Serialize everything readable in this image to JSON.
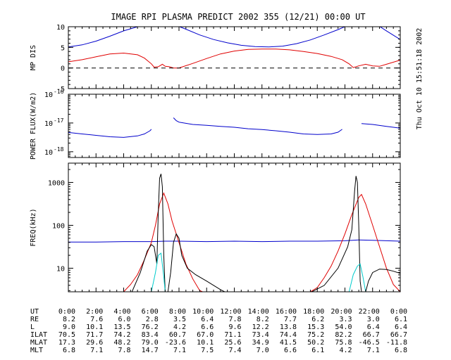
{
  "header": {
    "title": "IMAGE  RPI PLASMA PREDICT 2002 355 (12/21) 00:00 UT",
    "timestamp": "Thu Oct 10 15:51:18 2002"
  },
  "colors": {
    "blue": "#0000cc",
    "red": "#e00000",
    "black": "#000000",
    "cyan": "#00cccc"
  },
  "chart_data": [
    {
      "type": "line",
      "ylabel": "MP DIS",
      "xlim": [
        0,
        24
      ],
      "ylim": [
        -5,
        10
      ],
      "yticks": [
        -5,
        0,
        5,
        10
      ],
      "series": [
        {
          "color": "blue",
          "points": [
            [
              0,
              5.1
            ],
            [
              1,
              5.6
            ],
            [
              2,
              6.5
            ],
            [
              3,
              7.7
            ],
            [
              4,
              9.0
            ],
            [
              5,
              10.0
            ],
            [
              5.2,
              10.3
            ]
          ]
        },
        {
          "color": "blue",
          "points": [
            [
              7.8,
              10.3
            ],
            [
              8.5,
              9.4
            ],
            [
              9.5,
              8.0
            ],
            [
              10.5,
              6.9
            ],
            [
              11.5,
              6.1
            ],
            [
              12.5,
              5.5
            ],
            [
              13.5,
              5.2
            ],
            [
              14.5,
              5.1
            ],
            [
              15.5,
              5.3
            ],
            [
              16.5,
              5.9
            ],
            [
              17.5,
              6.8
            ],
            [
              18.5,
              8.0
            ],
            [
              19.5,
              9.3
            ],
            [
              20.2,
              10.3
            ]
          ]
        },
        {
          "color": "blue",
          "points": [
            [
              22.4,
              10.3
            ],
            [
              23,
              9.0
            ],
            [
              24,
              6.9
            ]
          ]
        },
        {
          "color": "red",
          "points": [
            [
              0,
              1.5
            ],
            [
              1,
              2.0
            ],
            [
              2,
              2.7
            ],
            [
              3,
              3.4
            ],
            [
              4,
              3.6
            ],
            [
              5,
              3.2
            ],
            [
              5.5,
              2.4
            ],
            [
              6,
              1.0
            ],
            [
              6.2,
              0.2
            ],
            [
              6.5,
              0.3
            ],
            [
              6.8,
              0.9
            ],
            [
              7,
              0.4
            ],
            [
              7.3,
              0.3
            ],
            [
              7.6,
              0.0
            ],
            [
              8,
              0.0
            ],
            [
              9,
              1.1
            ],
            [
              10,
              2.3
            ],
            [
              11,
              3.4
            ],
            [
              12,
              4.1
            ],
            [
              13,
              4.5
            ],
            [
              14,
              4.6
            ],
            [
              15,
              4.6
            ],
            [
              16,
              4.4
            ],
            [
              17,
              4.0
            ],
            [
              18,
              3.5
            ],
            [
              19,
              2.8
            ],
            [
              19.8,
              2.0
            ],
            [
              20.3,
              1.0
            ],
            [
              20.6,
              0.1
            ],
            [
              21,
              0.5
            ],
            [
              21.5,
              0.9
            ],
            [
              22,
              0.5
            ],
            [
              22.5,
              0.4
            ],
            [
              23,
              0.9
            ],
            [
              24,
              1.9
            ]
          ]
        },
        {
          "color": "black",
          "dashed": true,
          "points": [
            [
              0,
              0
            ],
            [
              24,
              0
            ]
          ]
        }
      ]
    },
    {
      "type": "line",
      "ylabel": "POWER FLUX(W/m2)",
      "xlim": [
        0,
        24
      ],
      "ylim": [
        -18.2,
        -16
      ],
      "log": true,
      "yticks": [
        -18,
        -17,
        -16
      ],
      "ytick_labels": [
        "10",
        "10",
        "10"
      ],
      "ytick_exponents": [
        "-18",
        "-17",
        "-16"
      ],
      "series": [
        {
          "color": "blue",
          "points": [
            [
              0,
              -17.33
            ],
            [
              1,
              -17.38
            ],
            [
              2,
              -17.43
            ],
            [
              3,
              -17.48
            ],
            [
              4,
              -17.5
            ],
            [
              5,
              -17.45
            ],
            [
              5.5,
              -17.38
            ],
            [
              5.9,
              -17.27
            ],
            [
              6.0,
              -17.22
            ]
          ]
        },
        {
          "color": "blue",
          "points": [
            [
              7.6,
              -16.82
            ],
            [
              7.8,
              -16.92
            ],
            [
              8,
              -16.97
            ],
            [
              9,
              -17.05
            ],
            [
              10,
              -17.08
            ],
            [
              11,
              -17.12
            ],
            [
              12,
              -17.15
            ],
            [
              13,
              -17.2
            ],
            [
              14,
              -17.23
            ],
            [
              15,
              -17.27
            ],
            [
              16,
              -17.32
            ],
            [
              17,
              -17.38
            ],
            [
              18,
              -17.4
            ],
            [
              19,
              -17.38
            ],
            [
              19.5,
              -17.32
            ],
            [
              19.8,
              -17.22
            ]
          ]
        },
        {
          "color": "blue",
          "points": [
            [
              21.2,
              -17.02
            ],
            [
              22,
              -17.05
            ],
            [
              23,
              -17.12
            ],
            [
              24,
              -17.18
            ]
          ]
        }
      ]
    },
    {
      "type": "line",
      "ylabel": "FREQ(kHz)",
      "xlim": [
        0,
        24
      ],
      "ylim": [
        0.45,
        3.45
      ],
      "log": true,
      "yticks": [
        1,
        2,
        3
      ],
      "ytick_labels": [
        "10",
        "100",
        "1000"
      ],
      "series": [
        {
          "color": "blue",
          "points": [
            [
              0,
              1.61
            ],
            [
              2,
              1.61
            ],
            [
              4,
              1.62
            ],
            [
              6,
              1.62
            ],
            [
              7,
              1.63
            ],
            [
              8,
              1.63
            ],
            [
              10,
              1.62
            ],
            [
              12,
              1.63
            ],
            [
              14,
              1.62
            ],
            [
              16,
              1.63
            ],
            [
              18,
              1.63
            ],
            [
              20,
              1.64
            ],
            [
              21,
              1.66
            ],
            [
              22,
              1.65
            ],
            [
              23,
              1.64
            ],
            [
              24,
              1.63
            ]
          ]
        },
        {
          "color": "red",
          "points": [
            [
              4,
              0.45
            ],
            [
              4.5,
              0.62
            ],
            [
              5,
              0.85
            ],
            [
              5.5,
              1.2
            ],
            [
              6,
              1.6
            ],
            [
              6.3,
              2.0
            ],
            [
              6.6,
              2.5
            ],
            [
              6.9,
              2.75
            ],
            [
              7.2,
              2.5
            ],
            [
              7.5,
              2.1
            ],
            [
              8,
              1.6
            ],
            [
              8.5,
              1.1
            ],
            [
              9,
              0.75
            ],
            [
              9.5,
              0.48
            ],
            [
              9.7,
              0.45
            ]
          ]
        },
        {
          "color": "red",
          "points": [
            [
              17.5,
              0.45
            ],
            [
              18,
              0.55
            ],
            [
              18.5,
              0.78
            ],
            [
              19,
              1.05
            ],
            [
              19.5,
              1.4
            ],
            [
              20,
              1.8
            ],
            [
              20.5,
              2.25
            ],
            [
              21,
              2.65
            ],
            [
              21.2,
              2.72
            ],
            [
              21.5,
              2.5
            ],
            [
              22,
              2.0
            ],
            [
              22.5,
              1.5
            ],
            [
              23,
              1.0
            ],
            [
              23.5,
              0.62
            ],
            [
              24,
              0.45
            ]
          ]
        },
        {
          "color": "black",
          "points": [
            [
              4.6,
              0.45
            ],
            [
              5.2,
              0.9
            ],
            [
              5.7,
              1.4
            ],
            [
              6.0,
              1.55
            ],
            [
              6.2,
              1.5
            ],
            [
              6.4,
              1.1
            ],
            [
              6.5,
              2.3
            ],
            [
              6.6,
              3.1
            ],
            [
              6.7,
              3.2
            ],
            [
              6.8,
              2.9
            ],
            [
              6.9,
              1.3
            ],
            [
              7.0,
              0.45
            ]
          ]
        },
        {
          "color": "black",
          "points": [
            [
              7.2,
              0.45
            ],
            [
              7.4,
              0.9
            ],
            [
              7.6,
              1.6
            ],
            [
              7.8,
              1.8
            ],
            [
              8.0,
              1.7
            ],
            [
              8.2,
              1.3
            ],
            [
              8.6,
              1.0
            ],
            [
              9.2,
              0.85
            ],
            [
              10,
              0.7
            ],
            [
              11,
              0.5
            ],
            [
              11.3,
              0.45
            ]
          ]
        },
        {
          "color": "black",
          "points": [
            [
              17.6,
              0.45
            ],
            [
              18.5,
              0.6
            ],
            [
              19.5,
              1.0
            ],
            [
              20.2,
              1.5
            ],
            [
              20.5,
              1.9
            ],
            [
              20.7,
              2.8
            ],
            [
              20.8,
              3.15
            ],
            [
              20.9,
              3.0
            ],
            [
              21.0,
              2.0
            ],
            [
              21.1,
              0.7
            ],
            [
              21.2,
              0.45
            ]
          ]
        },
        {
          "color": "black",
          "points": [
            [
              21.5,
              0.45
            ],
            [
              21.7,
              0.7
            ],
            [
              22,
              0.9
            ],
            [
              22.5,
              0.98
            ],
            [
              23,
              0.97
            ],
            [
              23.5,
              0.93
            ],
            [
              24,
              0.88
            ]
          ]
        },
        {
          "color": "cyan",
          "points": [
            [
              6.0,
              0.45
            ],
            [
              6.3,
              0.9
            ],
            [
              6.5,
              1.3
            ],
            [
              6.7,
              1.35
            ],
            [
              6.9,
              0.8
            ],
            [
              7.0,
              0.45
            ]
          ]
        },
        {
          "color": "cyan",
          "points": [
            [
              20.3,
              0.45
            ],
            [
              20.6,
              0.85
            ],
            [
              20.9,
              1.05
            ],
            [
              21.1,
              1.1
            ],
            [
              21.3,
              0.8
            ],
            [
              21.5,
              0.45
            ]
          ]
        }
      ]
    }
  ],
  "ephemeris": {
    "labels": [
      "UT",
      "RE",
      "L",
      "ILAT",
      "MLAT",
      "MLT"
    ],
    "rows": [
      [
        "0:00",
        "2:00",
        "4:00",
        "6:00",
        "8:00",
        "10:00",
        "12:00",
        "14:00",
        "16:00",
        "18:00",
        "20:00",
        "22:00",
        "0:00"
      ],
      [
        "8.2",
        "7.6",
        "6.0",
        "2.8",
        "3.5",
        "6.4",
        "7.8",
        "8.2",
        "7.7",
        "6.2",
        "3.3",
        "3.0",
        "6.1"
      ],
      [
        "9.0",
        "10.1",
        "13.5",
        "76.2",
        "4.2",
        "6.6",
        "9.6",
        "12.2",
        "13.8",
        "15.3",
        "54.0",
        "6.4",
        "6.4"
      ],
      [
        "70.5",
        "71.7",
        "74.2",
        "83.4",
        "60.7",
        "67.0",
        "71.1",
        "73.4",
        "74.4",
        "75.2",
        "82.2",
        "66.7",
        "66.7"
      ],
      [
        "17.3",
        "29.6",
        "48.2",
        "79.0",
        "-23.6",
        "10.1",
        "25.6",
        "34.9",
        "41.5",
        "50.2",
        "75.8",
        "-46.5",
        "-11.8"
      ],
      [
        "6.8",
        "7.1",
        "7.8",
        "14.7",
        "7.1",
        "7.5",
        "7.4",
        "7.0",
        "6.6",
        "6.1",
        "4.2",
        "7.1",
        "6.8"
      ]
    ]
  }
}
